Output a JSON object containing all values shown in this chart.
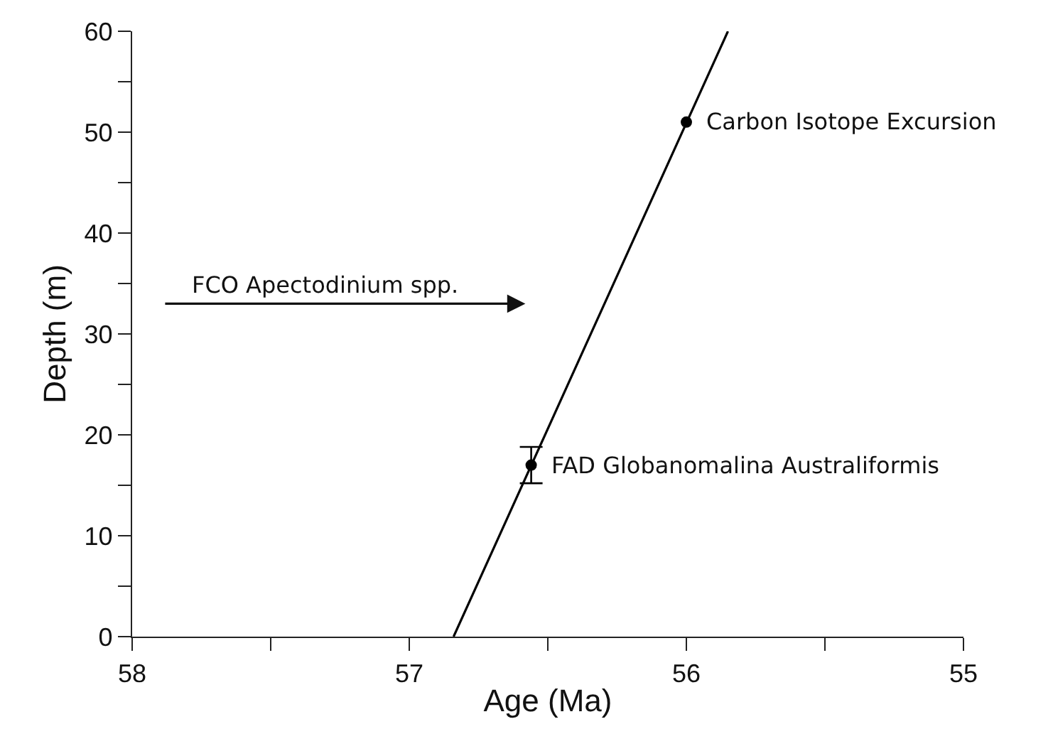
{
  "chart_data": {
    "type": "scatter",
    "xlabel": "Age (Ma)",
    "ylabel": "Depth (m)",
    "xlim": [
      58,
      55
    ],
    "ylim": [
      0,
      60
    ],
    "xticks": [
      58,
      {
        "value": 57.5,
        "label": null
      },
      57,
      {
        "value": 56.5,
        "label": null
      },
      56,
      {
        "value": 55.5,
        "label": null
      },
      55
    ],
    "yticks": [
      0,
      {
        "value": 5,
        "label": null
      },
      10,
      {
        "value": 15,
        "label": null
      },
      20,
      {
        "value": 25,
        "label": null
      },
      30,
      {
        "value": 35,
        "label": null
      },
      40,
      {
        "value": 45,
        "label": null
      },
      50,
      {
        "value": 55,
        "label": null
      },
      60
    ],
    "grid": false,
    "series": [
      {
        "type": "line",
        "marker": "none",
        "color": "#000000",
        "x": [
          56.84,
          55.85
        ],
        "values": [
          0,
          60
        ]
      },
      {
        "marker": "circle",
        "color": "#000000",
        "x": [
          56.56,
          56.0
        ],
        "values": [
          17,
          51
        ],
        "errors": [
          1.8,
          null
        ]
      }
    ],
    "annotations": [
      "FCO Apectodinium spp.",
      {
        "text": "FAD Globanomalina Australiformis",
        "x": 56.56,
        "y": 17
      },
      {
        "text": "Carbon Isotope Excursion",
        "x": 56.0,
        "y": 51
      }
    ]
  }
}
